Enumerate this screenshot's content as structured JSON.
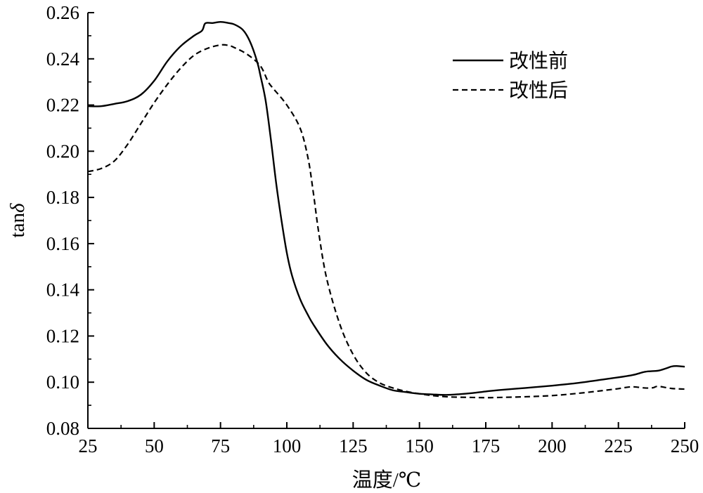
{
  "chart_data": {
    "type": "line",
    "xlabel": "温度/℃",
    "ylabel_base": "tan",
    "ylabel_symbol": "δ",
    "xlim": [
      25,
      250
    ],
    "ylim": [
      0.08,
      0.26
    ],
    "x_ticks": [
      25,
      50,
      75,
      100,
      125,
      150,
      175,
      200,
      225,
      250
    ],
    "y_ticks": [
      0.08,
      0.1,
      0.12,
      0.14,
      0.16,
      0.18,
      0.2,
      0.22,
      0.24,
      0.26
    ],
    "x_tick_labels": [
      "25",
      "50",
      "75",
      "100",
      "125",
      "150",
      "175",
      "200",
      "225",
      "250"
    ],
    "y_tick_labels": [
      "0.08",
      "0.10",
      "0.12",
      "0.14",
      "0.16",
      "0.18",
      "0.20",
      "0.22",
      "0.24",
      "0.26"
    ],
    "grid": false,
    "legend_position": "top-right",
    "series": [
      {
        "name": "改性前",
        "style": "solid",
        "x": [
          25,
          30,
          35,
          40,
          45,
          50,
          55,
          60,
          65,
          68,
          69,
          70,
          72,
          75,
          78,
          80,
          83,
          85,
          87,
          89,
          90,
          92,
          94,
          96,
          98,
          100,
          102,
          105,
          108,
          110,
          115,
          120,
          125,
          130,
          135,
          140,
          145,
          150,
          155,
          160,
          165,
          170,
          175,
          180,
          190,
          200,
          210,
          220,
          230,
          235,
          240,
          243,
          245,
          247,
          250
        ],
        "y": [
          0.2195,
          0.2195,
          0.2205,
          0.2217,
          0.2245,
          0.2305,
          0.239,
          0.2455,
          0.25,
          0.2522,
          0.255,
          0.2556,
          0.2555,
          0.256,
          0.2555,
          0.255,
          0.253,
          0.25,
          0.245,
          0.238,
          0.233,
          0.222,
          0.205,
          0.186,
          0.17,
          0.156,
          0.146,
          0.136,
          0.129,
          0.125,
          0.1165,
          0.11,
          0.105,
          0.101,
          0.0985,
          0.0965,
          0.0957,
          0.095,
          0.0947,
          0.0945,
          0.0948,
          0.0953,
          0.096,
          0.0966,
          0.0975,
          0.0985,
          0.0997,
          0.1013,
          0.103,
          0.1045,
          0.105,
          0.106,
          0.1068,
          0.107,
          0.1067
        ]
      },
      {
        "name": "改性后",
        "style": "dashed",
        "x": [
          25,
          30,
          35,
          40,
          45,
          50,
          55,
          60,
          65,
          70,
          75,
          78,
          80,
          85,
          90,
          93,
          95,
          100,
          105,
          108,
          110,
          112,
          115,
          120,
          125,
          130,
          135,
          140,
          145,
          150,
          155,
          160,
          165,
          170,
          175,
          180,
          190,
          200,
          210,
          220,
          225,
          230,
          235,
          238,
          240,
          245,
          250
        ],
        "y": [
          0.1912,
          0.1925,
          0.1958,
          0.203,
          0.212,
          0.221,
          0.229,
          0.236,
          0.2415,
          0.2445,
          0.246,
          0.2458,
          0.245,
          0.242,
          0.237,
          0.23,
          0.227,
          0.22,
          0.21,
          0.197,
          0.182,
          0.165,
          0.145,
          0.125,
          0.112,
          0.104,
          0.0997,
          0.0975,
          0.096,
          0.095,
          0.0942,
          0.0937,
          0.0935,
          0.0934,
          0.0933,
          0.0934,
          0.0937,
          0.0942,
          0.0952,
          0.0965,
          0.0972,
          0.098,
          0.0975,
          0.0976,
          0.0982,
          0.0973,
          0.097
        ]
      }
    ]
  }
}
